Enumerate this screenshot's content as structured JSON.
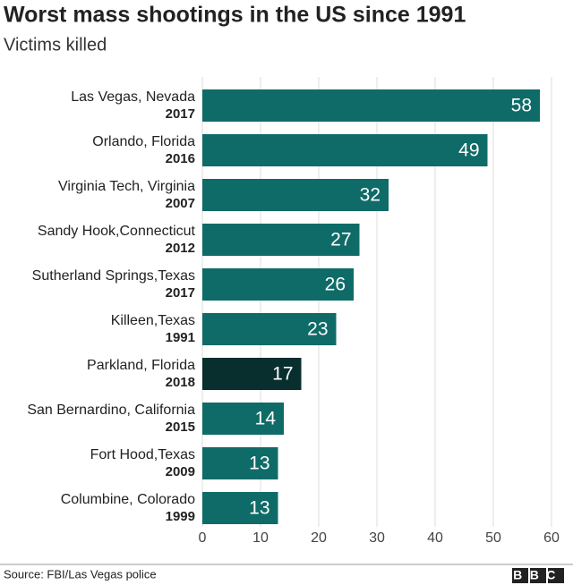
{
  "chart_data": {
    "type": "bar",
    "orientation": "horizontal",
    "title": "Worst mass shootings in the US since 1991",
    "subtitle": "Victims killed",
    "categories": [
      "Las Vegas, Nevada",
      "Orlando, Florida",
      "Virginia Tech, Virginia",
      "Sandy Hook,Connecticut",
      "Sutherland Springs,Texas",
      "Killeen,Texas",
      "Parkland, Florida",
      "San Bernardino, California",
      "Fort Hood,Texas",
      "Columbine, Colorado"
    ],
    "years": [
      "2017",
      "2016",
      "2007",
      "2012",
      "2017",
      "1991",
      "2018",
      "2015",
      "2009",
      "1999"
    ],
    "values": [
      58,
      49,
      32,
      27,
      26,
      23,
      17,
      14,
      13,
      13
    ],
    "colors": [
      "#0f6b68",
      "#0f6b68",
      "#0f6b68",
      "#0f6b68",
      "#0f6b68",
      "#0f6b68",
      "#082e2e",
      "#0f6b68",
      "#0f6b68",
      "#0f6b68"
    ],
    "xlim": [
      0,
      60
    ],
    "xticks": [
      0,
      10,
      20,
      30,
      40,
      50,
      60
    ],
    "grid": true,
    "source": "Source: FBI/Las Vegas police",
    "logo": "BBC"
  }
}
